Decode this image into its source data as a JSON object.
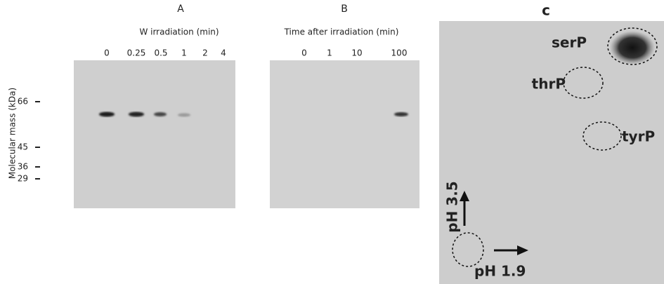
{
  "panel_a": {
    "label": "A",
    "subtitle": "W irradiation (min)",
    "lanes": [
      "0",
      "0.25",
      "0.5",
      "1",
      "2",
      "4"
    ]
  },
  "panel_b": {
    "label": "B",
    "subtitle": "Time after irradiation (min)",
    "lanes": [
      "0",
      "1",
      "10",
      "100"
    ]
  },
  "y_axis": {
    "title": "Molecular mass (kDa)",
    "markers": [
      "66",
      "45",
      "36",
      "29"
    ]
  },
  "panel_c": {
    "label": "c",
    "spots": [
      "serP",
      "thrP",
      "tyrP"
    ],
    "axis_vertical": "pH 3.5",
    "axis_horizontal": "pH 1.9"
  }
}
